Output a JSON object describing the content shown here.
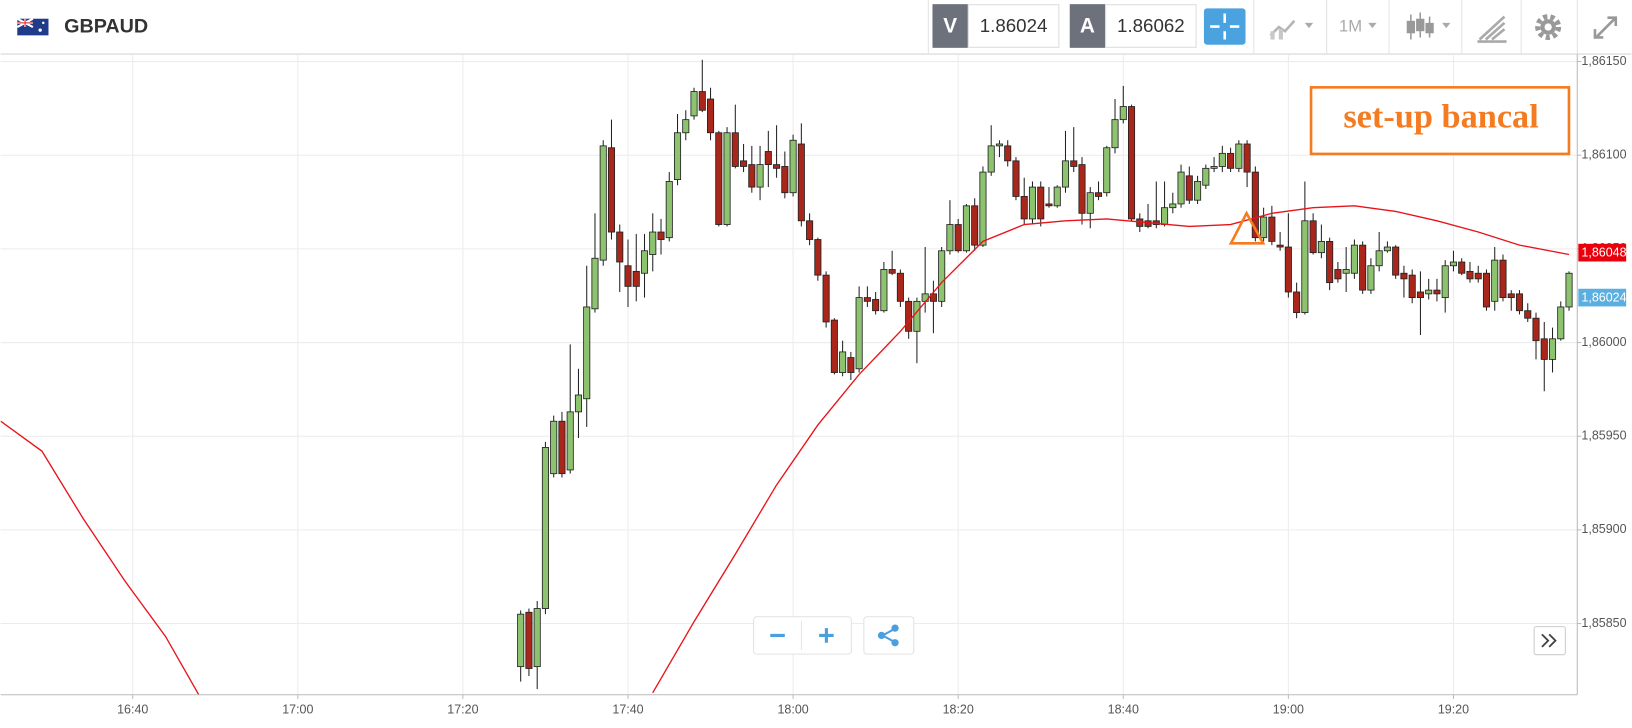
{
  "header": {
    "symbol": "GBPAUD",
    "bid_label": "V",
    "bid": 1.86024,
    "ask_label": "A",
    "ask": 1.86062,
    "interval": "1M"
  },
  "chart_data": {
    "type": "candlestick",
    "annotation": "set-up bancal",
    "xlim": [
      "16:24",
      "19:35"
    ],
    "xticks": [
      "16:40",
      "17:00",
      "17:20",
      "17:40",
      "18:00",
      "18:20",
      "18:40",
      "19:00",
      "19:20"
    ],
    "ylim": [
      1.85812,
      1.86154
    ],
    "yticks": [
      {
        "value": 1.8585,
        "label": "1,85850"
      },
      {
        "value": 1.859,
        "label": "1,85900"
      },
      {
        "value": 1.8595,
        "label": "1,85950"
      },
      {
        "value": 1.86,
        "label": "1,86000"
      },
      {
        "value": 1.8605,
        "label": "1,86050"
      },
      {
        "value": 1.861,
        "label": "1,86100"
      },
      {
        "value": 1.8615,
        "label": "1,86150"
      }
    ],
    "grid": true,
    "up_color": "#8dc26f",
    "down_color": "#a8261a",
    "x": [
      "17:27",
      "17:28",
      "17:29",
      "17:30",
      "17:31",
      "17:32",
      "17:33",
      "17:34",
      "17:35",
      "17:36",
      "17:37",
      "17:38",
      "17:39",
      "17:40",
      "17:41",
      "17:42",
      "17:43",
      "17:44",
      "17:45",
      "17:46",
      "17:47",
      "17:48",
      "17:49",
      "17:50",
      "17:51",
      "17:52",
      "17:53",
      "17:54",
      "17:55",
      "17:56",
      "17:57",
      "17:58",
      "17:59",
      "18:00",
      "18:01",
      "18:02",
      "18:03",
      "18:04",
      "18:05",
      "18:06",
      "18:07",
      "18:08",
      "18:09",
      "18:10",
      "18:11",
      "18:12",
      "18:13",
      "18:14",
      "18:15",
      "18:16",
      "18:17",
      "18:18",
      "18:19",
      "18:20",
      "18:21",
      "18:22",
      "18:23",
      "18:24",
      "18:25",
      "18:26",
      "18:27",
      "18:28",
      "18:29",
      "18:30",
      "18:31",
      "18:32",
      "18:33",
      "18:34",
      "18:35",
      "18:36",
      "18:37",
      "18:38",
      "18:39",
      "18:40",
      "18:41",
      "18:42",
      "18:43",
      "18:44",
      "18:45",
      "18:46",
      "18:47",
      "18:48",
      "18:49",
      "18:50",
      "18:51",
      "18:52",
      "18:53",
      "18:54",
      "18:55",
      "18:56",
      "18:57",
      "18:58",
      "18:59",
      "19:00",
      "19:01",
      "19:02",
      "19:03",
      "19:04",
      "19:05",
      "19:06",
      "19:07",
      "19:08",
      "19:09",
      "19:10",
      "19:11",
      "19:12",
      "19:13",
      "19:14",
      "19:15",
      "19:16",
      "19:17",
      "19:18",
      "19:19",
      "19:20",
      "19:21",
      "19:22",
      "19:23",
      "19:24",
      "19:25",
      "19:26",
      "19:27",
      "19:28",
      "19:29",
      "19:30",
      "19:31",
      "19:32",
      "19:33",
      "19:34"
    ],
    "open": [
      1.85827,
      1.85856,
      1.85827,
      1.85858,
      1.8593,
      1.85958,
      1.85932,
      1.85963,
      1.8597,
      1.86018,
      1.86044,
      1.86104,
      1.86059,
      1.86041,
      1.86038,
      1.86037,
      1.86047,
      1.86059,
      1.86056,
      1.86087,
      1.86112,
      1.86121,
      1.86134,
      1.8613,
      1.86112,
      1.86063,
      1.86112,
      1.86097,
      1.86095,
      1.86083,
      1.86102,
      1.86095,
      1.86094,
      1.8608,
      1.86106,
      1.86065,
      1.86055,
      1.86036,
      1.86012,
      1.85984,
      1.85992,
      1.85986,
      1.86024,
      1.86023,
      1.86017,
      1.86039,
      1.86037,
      1.86022,
      1.86006,
      1.86022,
      1.86026,
      1.86022,
      1.86049,
      1.86063,
      1.86049,
      1.86073,
      1.86052,
      1.86091,
      1.86105,
      1.86105,
      1.86097,
      1.86078,
      1.86066,
      1.86083,
      1.86074,
      1.86073,
      1.86083,
      1.86097,
      1.86095,
      1.86069,
      1.8608,
      1.8608,
      1.86104,
      1.86119,
      1.86126,
      1.86066,
      1.86065,
      1.86065,
      1.86063,
      1.86072,
      1.86074,
      1.86089,
      1.86076,
      1.86084,
      1.86093,
      1.86094,
      1.86101,
      1.86093,
      1.86106,
      1.86091,
      1.86056,
      1.86067,
      1.86052,
      1.86051,
      1.86027,
      1.86016,
      1.86065,
      1.86048,
      1.86054,
      1.86039,
      1.86037,
      1.86037,
      1.86052,
      1.86028,
      1.86041,
      1.86049,
      1.86051,
      1.86037,
      1.86036,
      1.86027,
      1.86026,
      1.86028,
      1.86024,
      1.86041,
      1.86043,
      1.86038,
      1.86037,
      1.86037,
      1.86022,
      1.86044,
      1.86026,
      1.86026,
      1.86017,
      1.86013,
      1.86002,
      1.85991,
      1.86002,
      1.86019
    ],
    "high": [
      1.85857,
      1.85858,
      1.85862,
      1.85947,
      1.85961,
      1.85963,
      1.85999,
      1.85986,
      1.86041,
      1.86069,
      1.86108,
      1.86119,
      1.86063,
      1.86055,
      1.86058,
      1.86058,
      1.86069,
      1.86066,
      1.86091,
      1.86122,
      1.86124,
      1.86136,
      1.86151,
      1.86136,
      1.86113,
      1.86115,
      1.86127,
      1.86106,
      1.86105,
      1.86105,
      1.86113,
      1.86116,
      1.86102,
      1.86111,
      1.86117,
      1.86069,
      1.86056,
      1.86038,
      1.86013,
      1.86001,
      1.85995,
      1.8603,
      1.8603,
      1.86027,
      1.86043,
      1.86049,
      1.86039,
      1.86024,
      1.86024,
      1.86051,
      1.86033,
      1.86051,
      1.86076,
      1.86066,
      1.86074,
      1.86077,
      1.86094,
      1.86116,
      1.86108,
      1.86108,
      1.86099,
      1.86088,
      1.86086,
      1.86086,
      1.86083,
      1.86084,
      1.86113,
      1.86115,
      1.86099,
      1.86083,
      1.86086,
      1.86105,
      1.8613,
      1.86137,
      1.86127,
      1.86069,
      1.86074,
      1.86086,
      1.86086,
      1.8608,
      1.86095,
      1.86094,
      1.86089,
      1.86095,
      1.86099,
      1.86105,
      1.86104,
      1.86108,
      1.86108,
      1.86094,
      1.86072,
      1.86073,
      1.86059,
      1.86069,
      1.86032,
      1.86086,
      1.86069,
      1.86063,
      1.86056,
      1.86043,
      1.86051,
      1.86055,
      1.86054,
      1.86045,
      1.86059,
      1.86054,
      1.86052,
      1.86041,
      1.86039,
      1.86038,
      1.86034,
      1.86034,
      1.86044,
      1.86049,
      1.86045,
      1.86043,
      1.86041,
      1.86039,
      1.86051,
      1.86047,
      1.86028,
      1.86028,
      1.86021,
      1.86016,
      1.86011,
      1.86008,
      1.86022,
      1.86038
    ],
    "low": [
      1.85819,
      1.85822,
      1.85815,
      1.85855,
      1.85928,
      1.85928,
      1.8593,
      1.85949,
      1.85955,
      1.86016,
      1.86041,
      1.86055,
      1.86027,
      1.86019,
      1.86022,
      1.86024,
      1.86038,
      1.86047,
      1.86054,
      1.86084,
      1.86108,
      1.86119,
      1.86123,
      1.86108,
      1.86062,
      1.86062,
      1.86093,
      1.86091,
      1.8608,
      1.86076,
      1.86083,
      1.86088,
      1.86077,
      1.86078,
      1.86062,
      1.86052,
      1.86033,
      1.86008,
      1.85983,
      1.85982,
      1.8598,
      1.85984,
      1.86019,
      1.86015,
      1.86016,
      1.86036,
      1.86019,
      1.86002,
      1.85989,
      1.86016,
      1.86005,
      1.86019,
      1.86047,
      1.86048,
      1.86048,
      1.86049,
      1.86051,
      1.86089,
      1.86099,
      1.86094,
      1.86076,
      1.86063,
      1.86063,
      1.86062,
      1.86072,
      1.86072,
      1.8608,
      1.86091,
      1.86063,
      1.86061,
      1.86076,
      1.86078,
      1.86101,
      1.86117,
      1.86065,
      1.86059,
      1.86061,
      1.86061,
      1.86062,
      1.86069,
      1.86072,
      1.86074,
      1.86074,
      1.86082,
      1.86091,
      1.86091,
      1.86091,
      1.86091,
      1.86083,
      1.86054,
      1.86054,
      1.86052,
      1.86049,
      1.86024,
      1.86013,
      1.86015,
      1.86047,
      1.86045,
      1.86028,
      1.86032,
      1.86027,
      1.86034,
      1.86026,
      1.86026,
      1.86038,
      1.86048,
      1.86034,
      1.86024,
      1.86021,
      1.86004,
      1.86023,
      1.86022,
      1.86016,
      1.86038,
      1.86036,
      1.86032,
      1.86032,
      1.86017,
      1.86017,
      1.86022,
      1.86017,
      1.86015,
      1.86011,
      1.85991,
      1.85974,
      1.85984,
      1.86001,
      1.86017
    ],
    "close": [
      1.85855,
      1.85826,
      1.85858,
      1.85944,
      1.85958,
      1.8593,
      1.85963,
      1.85972,
      1.86019,
      1.86045,
      1.86105,
      1.86059,
      1.86043,
      1.8603,
      1.8603,
      1.86049,
      1.86059,
      1.86055,
      1.86086,
      1.86112,
      1.86119,
      1.86134,
      1.86124,
      1.86112,
      1.86063,
      1.86112,
      1.86094,
      1.86094,
      1.86083,
      1.86095,
      1.86095,
      1.86093,
      1.8608,
      1.86108,
      1.86065,
      1.86055,
      1.86036,
      1.86011,
      1.85984,
      1.85995,
      1.85984,
      1.86024,
      1.86022,
      1.86017,
      1.86039,
      1.86037,
      1.86022,
      1.86006,
      1.86022,
      1.86026,
      1.86022,
      1.86049,
      1.86063,
      1.86049,
      1.86073,
      1.86052,
      1.86091,
      1.86105,
      1.86106,
      1.86097,
      1.86078,
      1.86066,
      1.86083,
      1.86066,
      1.86073,
      1.86083,
      1.86097,
      1.86094,
      1.86069,
      1.8608,
      1.86078,
      1.86104,
      1.86119,
      1.86126,
      1.86066,
      1.86062,
      1.86062,
      1.86063,
      1.86072,
      1.86074,
      1.86091,
      1.86076,
      1.86086,
      1.86093,
      1.86094,
      1.86101,
      1.86093,
      1.86106,
      1.86091,
      1.86056,
      1.86067,
      1.86054,
      1.86051,
      1.86027,
      1.86016,
      1.86065,
      1.86048,
      1.86054,
      1.86032,
      1.86034,
      1.86039,
      1.86052,
      1.86028,
      1.86041,
      1.86049,
      1.86051,
      1.86036,
      1.86034,
      1.86024,
      1.86024,
      1.86028,
      1.86026,
      1.86041,
      1.86043,
      1.86037,
      1.86034,
      1.86034,
      1.86019,
      1.86044,
      1.86024,
      1.86024,
      1.86017,
      1.86013,
      1.86001,
      1.85991,
      1.86002,
      1.86019,
      1.86037
    ],
    "lines": [
      {
        "color": "#e8141b",
        "x": [
          "16:24",
          "16:29",
          "16:34",
          "16:39",
          "16:44",
          "16:48",
          "17:00",
          "17:43",
          "17:48",
          "17:53",
          "17:58",
          "18:03",
          "18:08",
          "18:13",
          "18:18",
          "18:23",
          "18:28",
          "18:33",
          "18:38",
          "18:43",
          "18:48",
          "18:53",
          "18:58",
          "19:03",
          "19:08",
          "19:13",
          "19:18",
          "19:23",
          "19:28",
          "19:34"
        ],
        "values": [
          1.85958,
          1.85942,
          1.85906,
          1.85873,
          1.85843,
          1.85812,
          null,
          1.85813,
          1.85851,
          1.85887,
          1.85924,
          1.85956,
          1.85983,
          1.86006,
          1.86032,
          1.86054,
          1.86063,
          1.86065,
          1.86066,
          1.86064,
          1.86062,
          1.86063,
          1.86069,
          1.86072,
          1.86073,
          1.8607,
          1.86065,
          1.86059,
          1.86052,
          1.86047
        ]
      }
    ],
    "price_markers": [
      {
        "value": 1.86048,
        "label": "1,86048",
        "color": "#e8000b"
      },
      {
        "value": 1.86024,
        "label": "1,86024",
        "color": "#5aaee0"
      }
    ]
  }
}
